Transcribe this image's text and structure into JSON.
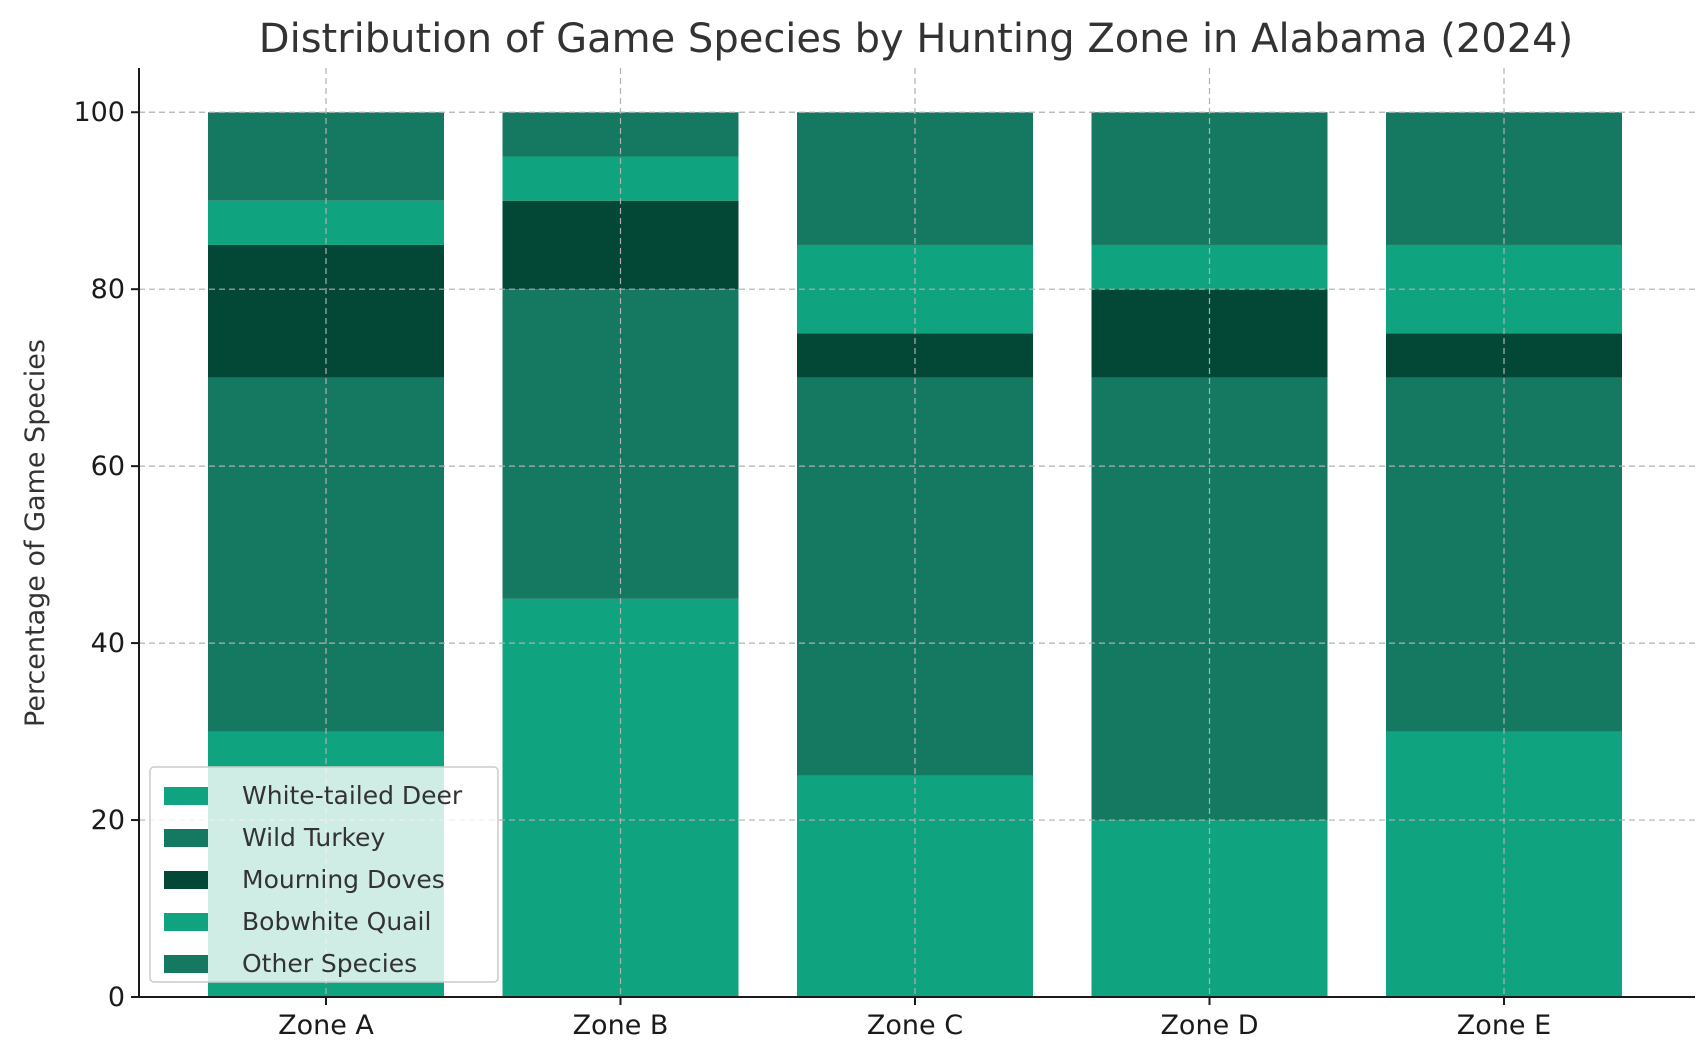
{
  "chart_data": {
    "type": "bar",
    "stacked": true,
    "title": "Distribution of Game Species by Hunting Zone in Alabama (2024)",
    "xlabel": "",
    "ylabel": "Percentage of Game Species",
    "categories": [
      "Zone A",
      "Zone B",
      "Zone C",
      "Zone D",
      "Zone E"
    ],
    "ylim": [
      0,
      105
    ],
    "yticks": [
      0,
      20,
      40,
      60,
      80,
      100
    ],
    "grid": true,
    "legend_position": "lower-left",
    "series": [
      {
        "name": "White-tailed Deer",
        "color": "#10a37f",
        "values": [
          30,
          45,
          25,
          20,
          30
        ]
      },
      {
        "name": "Wild Turkey",
        "color": "#147960",
        "values": [
          40,
          35,
          45,
          50,
          40
        ]
      },
      {
        "name": "Mourning Doves",
        "color": "#034737",
        "values": [
          15,
          10,
          5,
          10,
          5
        ]
      },
      {
        "name": "Bobwhite Quail",
        "color": "#10a37f",
        "values": [
          5,
          5,
          10,
          5,
          10
        ]
      },
      {
        "name": "Other Species",
        "color": "#147960",
        "values": [
          10,
          5,
          15,
          15,
          15
        ]
      }
    ]
  }
}
